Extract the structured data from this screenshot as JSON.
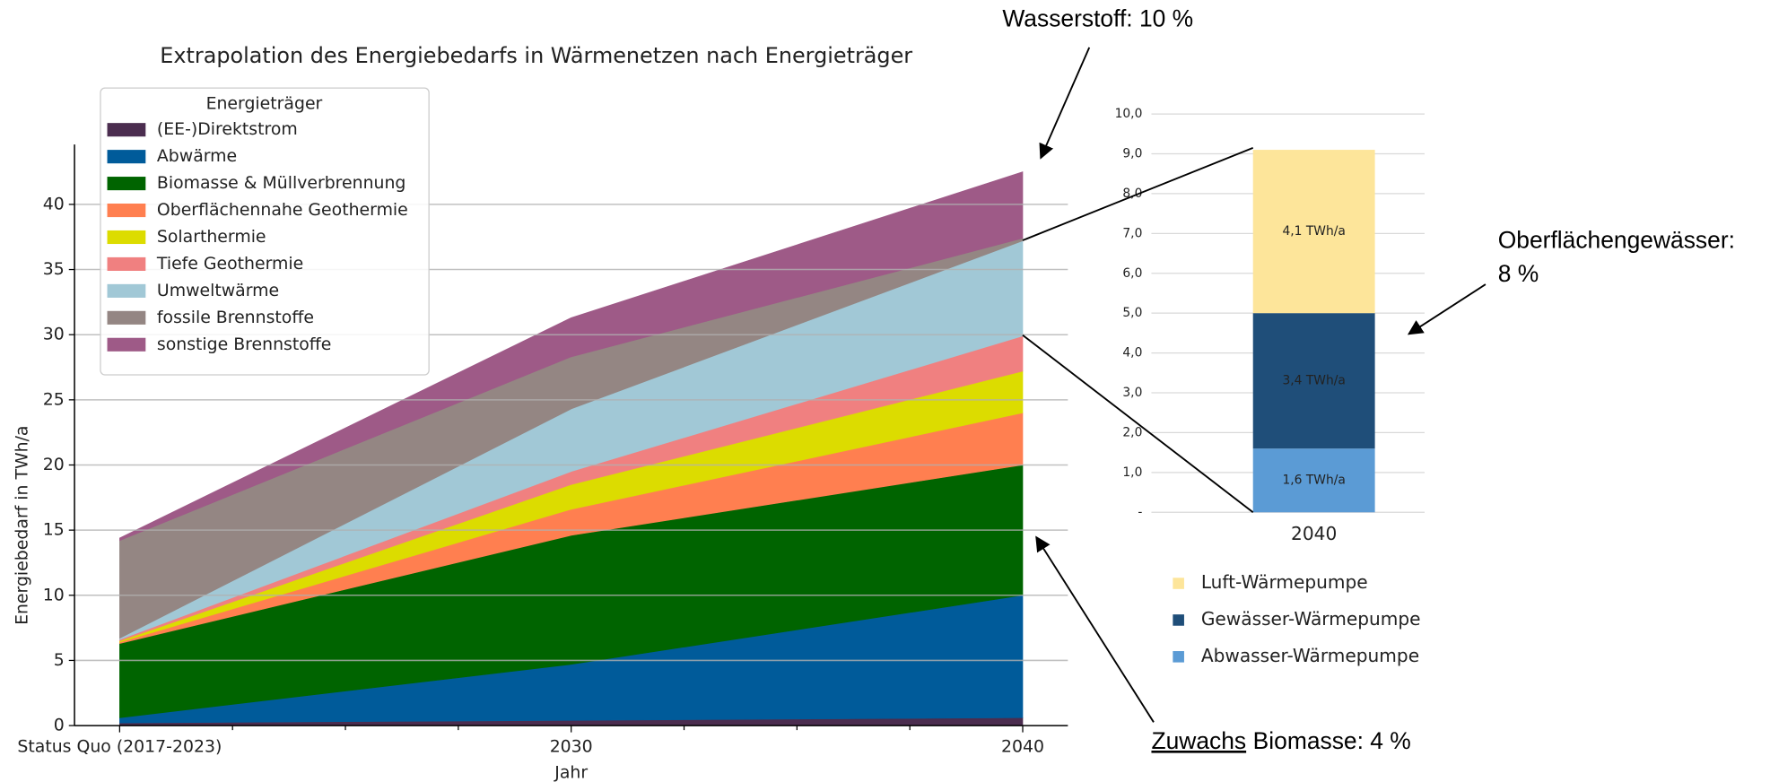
{
  "chart_data": [
    {
      "type": "area",
      "stacked": true,
      "title": "Extrapolation des Energiebedarfs in Wärmenetzen nach Energieträger",
      "xlabel": "Jahr",
      "ylabel": "Energiebedarf in TWh/a",
      "categories": [
        "Status Quo (2017-2023)",
        "2030",
        "2040"
      ],
      "ylim": [
        0,
        44.6
      ],
      "yticks": [
        0,
        5,
        10,
        15,
        20,
        25,
        30,
        35,
        40
      ],
      "grid": true,
      "legend_title": "Energieträger",
      "legend": "upper left",
      "series": [
        {
          "name": "(EE-)Direktstrom",
          "color": "#4b2d4f",
          "values": [
            0.2,
            0.4,
            0.6
          ]
        },
        {
          "name": "Abwärme",
          "color": "#005b9a",
          "values": [
            0.4,
            4.3,
            9.4
          ]
        },
        {
          "name": "Biomasse & Müllverbrennung",
          "color": "#006400",
          "values": [
            5.7,
            9.9,
            10.0
          ]
        },
        {
          "name": "Oberflächennahe Geothermie",
          "color": "#ff7f50",
          "values": [
            0.1,
            2.0,
            4.0
          ]
        },
        {
          "name": "Solarthermie",
          "color": "#dcdc00",
          "values": [
            0.1,
            1.9,
            3.2
          ]
        },
        {
          "name": "Tiefe Geothermie",
          "color": "#f08080",
          "values": [
            0.1,
            1.0,
            2.7
          ]
        },
        {
          "name": "Umweltwärme",
          "color": "#a1c8d6",
          "values": [
            0.1,
            4.8,
            7.3
          ]
        },
        {
          "name": "fossile Brennstoffe",
          "color": "#948683",
          "values": [
            7.5,
            4.0,
            0.2
          ]
        },
        {
          "name": "sonstige Brennstoffe",
          "color": "#9e5a87",
          "values": [
            0.2,
            3.0,
            5.1
          ]
        }
      ]
    },
    {
      "type": "bar",
      "stacked": true,
      "categories": [
        "2040"
      ],
      "ylim": [
        0,
        10
      ],
      "yticks": [
        {
          "value": 0,
          "label": "-"
        },
        {
          "value": 1,
          "label": "1,0"
        },
        {
          "value": 2,
          "label": "2,0"
        },
        {
          "value": 3,
          "label": "3,0"
        },
        {
          "value": 4,
          "label": "4,0"
        },
        {
          "value": 5,
          "label": "5,0"
        },
        {
          "value": 6,
          "label": "6,0"
        },
        {
          "value": 7,
          "label": "7,0"
        },
        {
          "value": 8,
          "label": "8,0"
        },
        {
          "value": 9,
          "label": "9,0"
        },
        {
          "value": 10,
          "label": "10,0"
        }
      ],
      "grid": true,
      "legend": "lower center",
      "series": [
        {
          "name": "Abwasser-Wärmepumpe",
          "color": "#5b9bd5",
          "values": [
            1.6
          ],
          "value_labels": [
            "1,6 TWh/a"
          ]
        },
        {
          "name": "Gewässer-Wärmepumpe",
          "color": "#1f4e79",
          "values": [
            3.4
          ],
          "value_labels": [
            "3,4 TWh/a"
          ]
        },
        {
          "name": "Luft-Wärmepumpe",
          "color": "#fde59a",
          "values": [
            4.1
          ],
          "value_labels": [
            "4,1 TWh/a"
          ]
        }
      ]
    }
  ],
  "annotations": [
    [
      "Wasserstoff: 10 %"
    ],
    [
      "Oberflächengewässer:",
      "8 %"
    ],
    [
      "Zuwachs",
      "Biomasse: 4 %"
    ]
  ]
}
